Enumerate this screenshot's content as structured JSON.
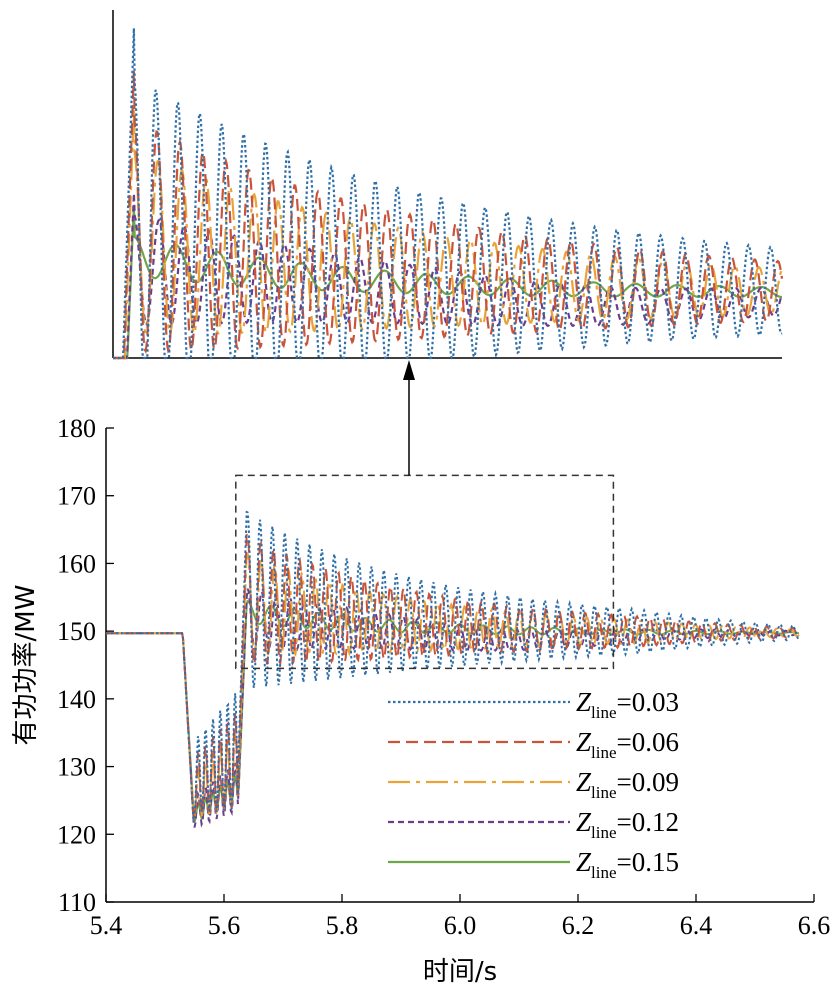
{
  "chart_data": {
    "type": "line",
    "title": "",
    "xlabel": "时间/s",
    "ylabel": "有功功率/MW",
    "xlim": [
      5.4,
      6.6
    ],
    "ylim": [
      110,
      180
    ],
    "xticks": [
      "5.4",
      "5.6",
      "5.8",
      "6.0",
      "6.2",
      "6.4",
      "6.6"
    ],
    "yticks": [
      "110",
      "120",
      "130",
      "140",
      "150",
      "160",
      "170",
      "180"
    ],
    "grid": false,
    "legend_position": "lower-right",
    "inset": {
      "description_region_x": [
        5.62,
        6.26
      ],
      "description_region_y": [
        144.5,
        173
      ],
      "arrow": "up"
    },
    "series": [
      {
        "name": "Z_line=0.03",
        "legend_var": "Z",
        "legend_sub": "line",
        "legend_value": "=0.03",
        "color": "#2f6fa8",
        "dash": "dotted",
        "steady": 149.7,
        "dip_min": 119.5,
        "dip_max": 137.5,
        "peak": 171.5,
        "osc_amp_start": 13.0,
        "osc_amp_end": 1.2,
        "osc_period": 0.021,
        "tail_offset": 0
      },
      {
        "name": "Z_line=0.06",
        "legend_var": "Z",
        "legend_sub": "line",
        "legend_value": "=0.06",
        "color": "#c9543a",
        "dash": "dashed",
        "steady": 149.7,
        "dip_min": 119.8,
        "dip_max": 134.5,
        "peak": 168.0,
        "osc_amp_start": 9.5,
        "osc_amp_end": 0.7,
        "osc_period": 0.022,
        "tail_offset": 0
      },
      {
        "name": "Z_line=0.09",
        "legend_var": "Z",
        "legend_sub": "line",
        "legend_value": "=0.09",
        "color": "#e8a33a",
        "dash": "dashdot",
        "steady": 149.7,
        "dip_min": 120.0,
        "dip_max": 131.5,
        "peak": 165.0,
        "osc_amp_start": 7.5,
        "osc_amp_end": 0.5,
        "osc_period": 0.023,
        "tail_offset": 0
      },
      {
        "name": "Z_line=0.12",
        "legend_var": "Z",
        "legend_sub": "line",
        "legend_value": "=0.12",
        "color": "#6b3d8f",
        "dash": "shortdash",
        "steady": 149.7,
        "dip_min": 119.5,
        "dip_max": 127.0,
        "peak": 158.0,
        "osc_amp_start": 4.5,
        "osc_amp_end": 0.3,
        "osc_period": 0.024,
        "tail_offset": -1.2
      },
      {
        "name": "Z_line=0.15",
        "legend_var": "Z",
        "legend_sub": "line",
        "legend_value": "=0.15",
        "color": "#6ea64a",
        "dash": "solid",
        "steady": 149.7,
        "dip_min": 121.0,
        "dip_max": 125.0,
        "peak": 157.0,
        "osc_amp_start": 1.6,
        "osc_amp_end": 0.1,
        "osc_period": 0.04,
        "tail_offset": 0
      }
    ]
  }
}
